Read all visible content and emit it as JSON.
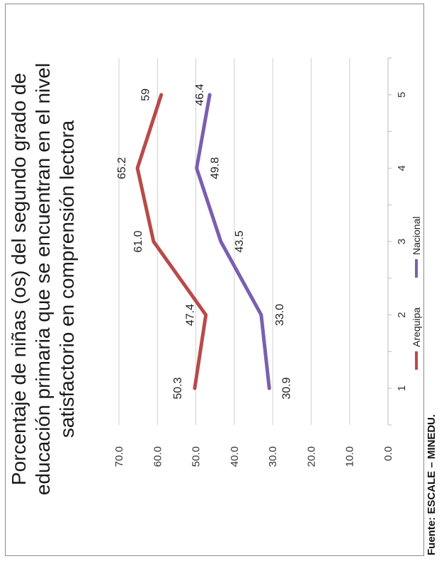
{
  "chart_data": {
    "type": "line",
    "title_lines": [
      "Porcentaje de niñas (os) del segundo grado de",
      "educación primaria que se encuentran en el nivel",
      "satisfactorio en comprensión lectora"
    ],
    "x": [
      1,
      2,
      3,
      4,
      5
    ],
    "x_tick_labels": [
      "1",
      "2",
      "3",
      "4",
      "5"
    ],
    "ylim": [
      0,
      70
    ],
    "y_ticks": [
      0,
      10,
      20,
      30,
      40,
      50,
      60,
      70
    ],
    "y_tick_labels": [
      "0.0",
      "10.0",
      "20.0",
      "30.0",
      "40.0",
      "50.0",
      "60.0",
      "70.0"
    ],
    "grid": true,
    "legend_position": "bottom",
    "series": [
      {
        "name": "Arequipa",
        "color": "#b94a4a",
        "values": [
          50.3,
          47.4,
          61.0,
          65.2,
          59
        ],
        "labels": [
          "50.3",
          "47.4",
          "61.0",
          "65.2",
          "59"
        ]
      },
      {
        "name": "Nacional",
        "color": "#7a5fb0",
        "values": [
          30.9,
          33.0,
          43.5,
          49.8,
          46.4
        ],
        "labels": [
          "30.9",
          "33.0",
          "43.5",
          "49.8",
          "46.4"
        ]
      }
    ]
  },
  "source": "Fuente: ESCALE – MINEDU."
}
